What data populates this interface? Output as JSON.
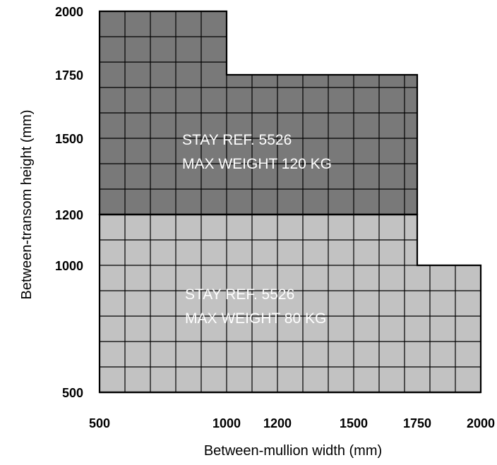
{
  "chart_data": {
    "type": "area",
    "title": "",
    "xlabel": "Between-mullion width (mm)",
    "ylabel": "Between-transom height (mm)",
    "xlim": [
      500,
      2000
    ],
    "ylim": [
      500,
      2000
    ],
    "x_ticks": [
      "500",
      "1000",
      "1200",
      "1500",
      "1750",
      "2000"
    ],
    "y_ticks": [
      "500",
      "1000",
      "1200",
      "1500",
      "1750",
      "2000"
    ],
    "grid": true,
    "regions": [
      {
        "label_lines": [
          "STAY REF. 5526",
          "MAX WEIGHT 120 KG"
        ],
        "color": "#797979",
        "polygon": [
          [
            500,
            1200
          ],
          [
            1750,
            1200
          ],
          [
            1750,
            1750
          ],
          [
            1000,
            1750
          ],
          [
            1000,
            2000
          ],
          [
            500,
            2000
          ]
        ]
      },
      {
        "label_lines": [
          "STAY REF. 5526",
          "MAX WEIGHT 80 KG"
        ],
        "color": "#c2c2c2",
        "polygon": [
          [
            500,
            500
          ],
          [
            2000,
            500
          ],
          [
            2000,
            1000
          ],
          [
            1750,
            1000
          ],
          [
            1750,
            1200
          ],
          [
            500,
            1200
          ]
        ]
      }
    ]
  }
}
